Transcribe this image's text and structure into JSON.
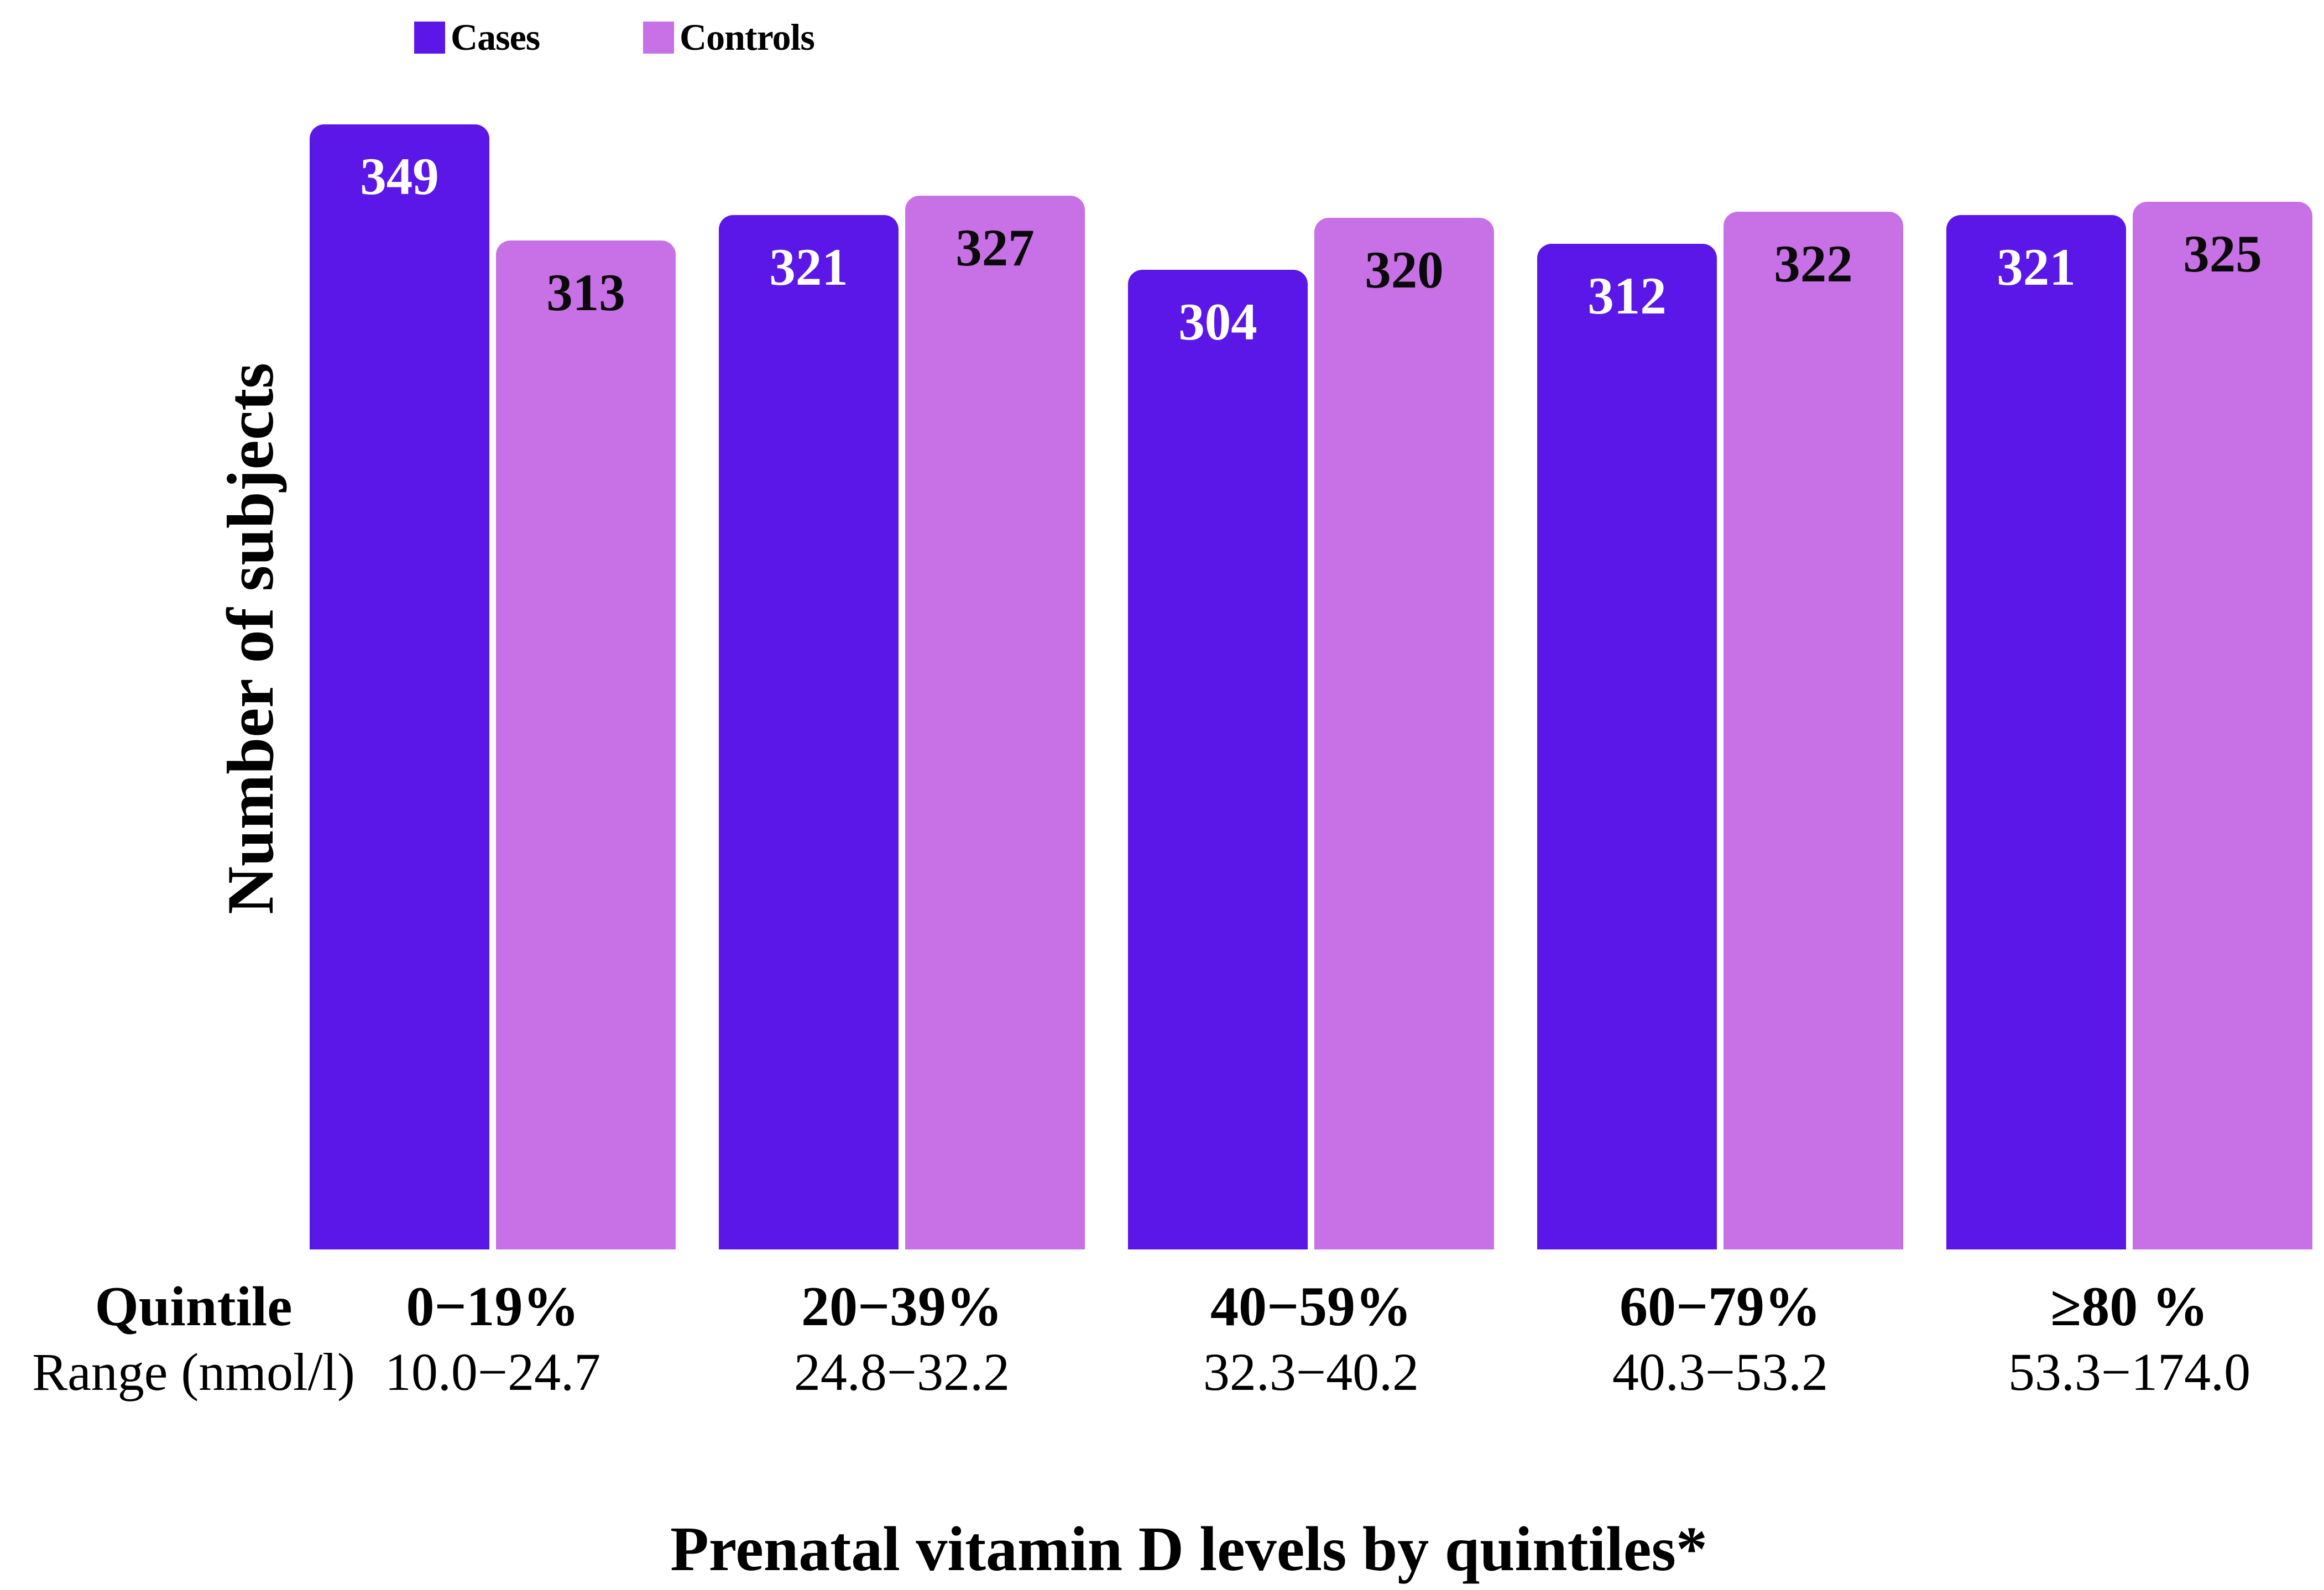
{
  "legend": {
    "items": [
      {
        "label": "Cases",
        "color": "#5a17e8"
      },
      {
        "label": "Controls",
        "color": "#c870e5"
      }
    ]
  },
  "row_headers": {
    "quintile": "Quintile",
    "range": "Range (nmol/l)"
  },
  "chart_data": {
    "type": "bar",
    "title": "",
    "xlabel": "Prenatal vitamin D levels by quintiles*",
    "ylabel": "Number of subjects",
    "categories": [
      "0−19%",
      "20−39%",
      "40−59%",
      "60−79%",
      "≥80 %"
    ],
    "category_ranges_nmol_l": [
      "10.0−24.7",
      "24.8−32.2",
      "32.3−40.2",
      "40.3−53.2",
      "53.3−174.0"
    ],
    "series": [
      {
        "name": "Cases",
        "color": "#5a17e8",
        "label_color": "#ffffff",
        "values": [
          349,
          321,
          304,
          312,
          321
        ]
      },
      {
        "name": "Controls",
        "color": "#c870e5",
        "label_color": "#0a0a0a",
        "values": [
          313,
          327,
          320,
          322,
          325
        ]
      }
    ],
    "ylim": [
      0,
      388
    ],
    "grid": false,
    "axis_lines": false,
    "bar_corner_radius": "rounded-top",
    "value_labels": "inside-top",
    "legend_position": "top-left"
  }
}
